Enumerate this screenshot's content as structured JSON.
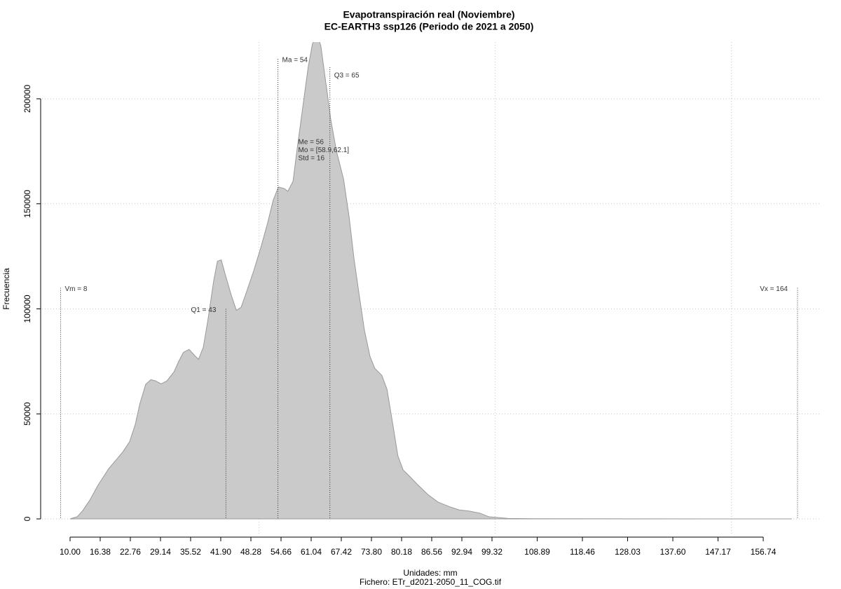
{
  "chart_data": {
    "type": "area",
    "title": "Evapotranspiración real (Noviembre)",
    "subtitle": "EC-EARTH3 ssp126 (Periodo de 2021 a 2050)",
    "x_label": "Unidades: mm",
    "caption": "Fichero: ETr_d2021-2050_11_COG.tif",
    "y_label": "Frecuencia",
    "x": [
      10,
      11.5,
      12.7,
      14.2,
      15.9,
      18.2,
      19.6,
      21.1,
      22.6,
      23.8,
      24.8,
      26.0,
      27.1,
      28.1,
      29.3,
      30.5,
      32.0,
      33.0,
      34.0,
      35.2,
      36.4,
      37.2,
      38.2,
      39.2,
      40.4,
      41.2,
      42.0,
      42.9,
      44.1,
      45.2,
      46.2,
      47.4,
      48.9,
      50.4,
      51.8,
      53.0,
      54.1,
      55.3,
      56.1,
      57.2,
      58.1,
      59.3,
      60.4,
      61.3,
      62.2,
      63.1,
      64.2,
      65.2,
      66.4,
      67.9,
      69.1,
      70.1,
      71.2,
      72.3,
      73.5,
      74.5,
      76.0,
      77.1,
      78.2,
      79.4,
      80.5,
      82.0,
      83.4,
      85.7,
      87.9,
      90.1,
      92.3,
      94.6,
      96.8,
      98.7,
      100.5,
      102.7,
      108,
      162.8
    ],
    "values": [
      0,
      1000,
      4000,
      9000,
      16000,
      24000,
      27700,
      31700,
      36700,
      45000,
      55000,
      64000,
      66300,
      65700,
      64300,
      65700,
      70000,
      75000,
      79300,
      80700,
      77700,
      76000,
      81700,
      95000,
      113300,
      122700,
      123300,
      116000,
      106700,
      99300,
      100700,
      108300,
      118300,
      129300,
      140700,
      151700,
      158000,
      157300,
      156000,
      160700,
      176700,
      196700,
      215000,
      226000,
      232000,
      225000,
      206700,
      190000,
      175000,
      161700,
      143300,
      124000,
      106700,
      90000,
      77300,
      71700,
      68300,
      61700,
      46700,
      30000,
      23300,
      20000,
      16700,
      11700,
      8000,
      6000,
      4300,
      3700,
      2700,
      1000,
      700,
      200,
      100,
      0
    ],
    "color": "#cacaca",
    "line_color": "#999999",
    "xlim": [
      4.07,
      168.75
    ],
    "ylim": [
      -8000,
      227000
    ],
    "xticks": [
      {
        "value": 10,
        "label": "10.00"
      },
      16.38,
      22.76,
      29.14,
      35.52,
      {
        "value": 41.9,
        "label": "41.90"
      },
      48.28,
      54.66,
      61.04,
      67.42,
      {
        "value": 73.8,
        "label": "73.80"
      },
      80.18,
      86.56,
      92.94,
      99.32,
      108.89,
      118.46,
      128.03,
      {
        "value": 137.6,
        "label": "137.60"
      },
      147.17,
      156.74
    ],
    "yticks": [
      0,
      50000,
      100000,
      150000,
      200000
    ],
    "x_grid": [
      50,
      100,
      150
    ],
    "grid": true,
    "annotations": [
      {
        "text": "Vm = 8",
        "x": 8,
        "y": 110000
      },
      {
        "text": "Q1 = 43",
        "x": 43,
        "y": 100000
      },
      {
        "text": "Ma = 54",
        "x": 54,
        "y": 219000
      },
      {
        "text": "Q3 = 65",
        "x": 65,
        "y": 215000
      },
      {
        "text": "Vx = 164",
        "x": 164,
        "y": 110000
      }
    ],
    "stats": [
      "Me = 56",
      "Mo = [58.9,62.1]",
      "Std = 16"
    ],
    "stats_x": 58.3
  }
}
